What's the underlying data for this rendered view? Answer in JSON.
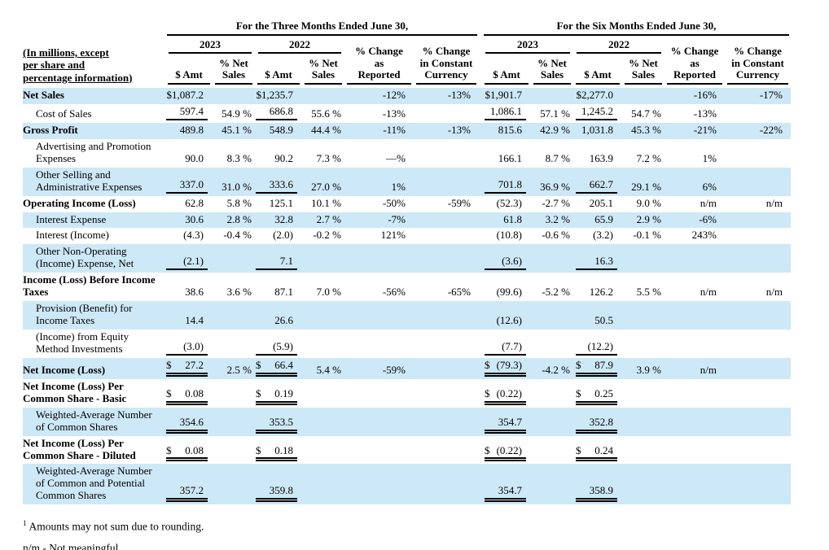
{
  "table": {
    "row_label_header": "(In millions, except\nper share and\npercentage information)",
    "period_groups": [
      {
        "label": "For the Three Months Ended June 30,",
        "years": [
          "2023",
          "2022"
        ]
      },
      {
        "label": "For the Six Months Ended June 30,",
        "years": [
          "2023",
          "2022"
        ]
      }
    ],
    "col_headers": {
      "amt": "$ Amt",
      "pct_net_sales": "% Net\nSales",
      "chg_reported": "% Change\nas\nReported",
      "chg_constant": "% Change\nin Constant\nCurrency"
    },
    "highlight_color": "#cde8f7",
    "rows": [
      {
        "label": "Net Sales",
        "bold": true,
        "indent": false,
        "shaded": true,
        "rule": null,
        "cells": [
          "$1,087.2",
          "",
          "$1,235.7",
          "",
          "-12%",
          "-13%",
          "$1,901.7",
          "",
          "$2,277.0",
          "",
          "-16%",
          "-17%"
        ]
      },
      {
        "label": "Cost of Sales",
        "bold": false,
        "indent": true,
        "shaded": false,
        "rule": "single",
        "cells": [
          "597.4",
          "54.9 %",
          "686.8",
          "55.6 %",
          "-13%",
          "",
          "1,086.1",
          "57.1 %",
          "1,245.2",
          "54.7 %",
          "-13%",
          ""
        ]
      },
      {
        "label": "Gross Profit",
        "bold": true,
        "indent": false,
        "shaded": true,
        "rule": null,
        "cells": [
          "489.8",
          "45.1 %",
          "548.9",
          "44.4 %",
          "-11%",
          "-13%",
          "815.6",
          "42.9 %",
          "1,031.8",
          "45.3 %",
          "-21%",
          "-22%"
        ]
      },
      {
        "label": "Advertising and Promotion Expenses",
        "bold": false,
        "indent": true,
        "shaded": false,
        "rule": null,
        "cells": [
          "90.0",
          "8.3 %",
          "90.2",
          "7.3 %",
          "—%",
          "",
          "166.1",
          "8.7 %",
          "163.9",
          "7.2 %",
          "1%",
          ""
        ]
      },
      {
        "label": "Other Selling and Administrative Expenses",
        "bold": false,
        "indent": true,
        "shaded": true,
        "rule": "single",
        "cells": [
          "337.0",
          "31.0 %",
          "333.6",
          "27.0 %",
          "1%",
          "",
          "701.8",
          "36.9 %",
          "662.7",
          "29.1 %",
          "6%",
          ""
        ]
      },
      {
        "label": "Operating Income (Loss)",
        "bold": true,
        "indent": false,
        "shaded": false,
        "rule": null,
        "cells": [
          "62.8",
          "5.8 %",
          "125.1",
          "10.1 %",
          "-50%",
          "-59%",
          "(52.3)",
          "-2.7 %",
          "205.1",
          "9.0 %",
          "n/m",
          "n/m"
        ]
      },
      {
        "label": "Interest Expense",
        "bold": false,
        "indent": true,
        "shaded": true,
        "rule": null,
        "cells": [
          "30.6",
          "2.8 %",
          "32.8",
          "2.7 %",
          "-7%",
          "",
          "61.8",
          "3.2 %",
          "65.9",
          "2.9 %",
          "-6%",
          ""
        ]
      },
      {
        "label": "Interest (Income)",
        "bold": false,
        "indent": true,
        "shaded": false,
        "rule": null,
        "cells": [
          "(4.3)",
          "-0.4 %",
          "(2.0)",
          "-0.2 %",
          "121%",
          "",
          "(10.8)",
          "-0.6 %",
          "(3.2)",
          "-0.1 %",
          "243%",
          ""
        ]
      },
      {
        "label": "Other Non-Operating (Income) Expense, Net",
        "bold": false,
        "indent": true,
        "shaded": true,
        "rule": "single",
        "cells": [
          "(2.1)",
          "",
          "7.1",
          "",
          "",
          "",
          "(3.6)",
          "",
          "16.3",
          "",
          "",
          ""
        ]
      },
      {
        "label": "Income (Loss) Before Income Taxes",
        "bold": true,
        "indent": false,
        "shaded": false,
        "rule": null,
        "cells": [
          "38.6",
          "3.6 %",
          "87.1",
          "7.0 %",
          "-56%",
          "-65%",
          "(99.6)",
          "-5.2 %",
          "126.2",
          "5.5 %",
          "n/m",
          "n/m"
        ]
      },
      {
        "label": "Provision (Benefit) for Income Taxes",
        "bold": false,
        "indent": true,
        "shaded": true,
        "rule": null,
        "cells": [
          "14.4",
          "",
          "26.6",
          "",
          "",
          "",
          "(12.6)",
          "",
          "50.5",
          "",
          "",
          ""
        ]
      },
      {
        "label": "(Income) from Equity Method Investments",
        "bold": false,
        "indent": true,
        "shaded": false,
        "rule": "single",
        "cells": [
          "(3.0)",
          "",
          "(5.9)",
          "",
          "",
          "",
          "(7.7)",
          "",
          "(12.2)",
          "",
          "",
          ""
        ]
      },
      {
        "label": "Net Income (Loss)",
        "bold": true,
        "indent": false,
        "shaded": true,
        "rule": "double",
        "cells": [
          "$ 27.2",
          "2.5 %",
          "$ 66.4",
          "5.4 %",
          "-59%",
          "",
          "$ (79.3)",
          "-4.2 %",
          "$ 87.9",
          "3.9 %",
          "n/m",
          ""
        ]
      },
      {
        "label": "Net Income (Loss) Per Common Share - Basic",
        "bold": true,
        "indent": false,
        "shaded": false,
        "rule": "double",
        "cells": [
          "$ 0.08",
          "",
          "$ 0.19",
          "",
          "",
          "",
          "$ (0.22)",
          "",
          "$ 0.25",
          "",
          "",
          ""
        ]
      },
      {
        "label": "Weighted-Average Number of Common Shares",
        "bold": false,
        "indent": true,
        "shaded": true,
        "rule": "double",
        "cells": [
          "354.6",
          "",
          "353.5",
          "",
          "",
          "",
          "354.7",
          "",
          "352.8",
          "",
          "",
          ""
        ]
      },
      {
        "label": "Net Income (Loss) Per Common Share - Diluted",
        "bold": true,
        "indent": false,
        "shaded": false,
        "rule": "double",
        "cells": [
          "$ 0.08",
          "",
          "$ 0.18",
          "",
          "",
          "",
          "$ (0.22)",
          "",
          "$ 0.24",
          "",
          "",
          ""
        ]
      },
      {
        "label": "Weighted-Average Number of Common and Potential Common Shares",
        "bold": false,
        "indent": true,
        "shaded": true,
        "rule": "double",
        "cells": [
          "357.2",
          "",
          "359.8",
          "",
          "",
          "",
          "354.7",
          "",
          "358.9",
          "",
          "",
          ""
        ]
      }
    ]
  },
  "footnotes": [
    {
      "sup": "1",
      "text": "Amounts may not sum due to rounding."
    },
    {
      "sup": "",
      "text": "n/m - Not meaningful"
    }
  ]
}
